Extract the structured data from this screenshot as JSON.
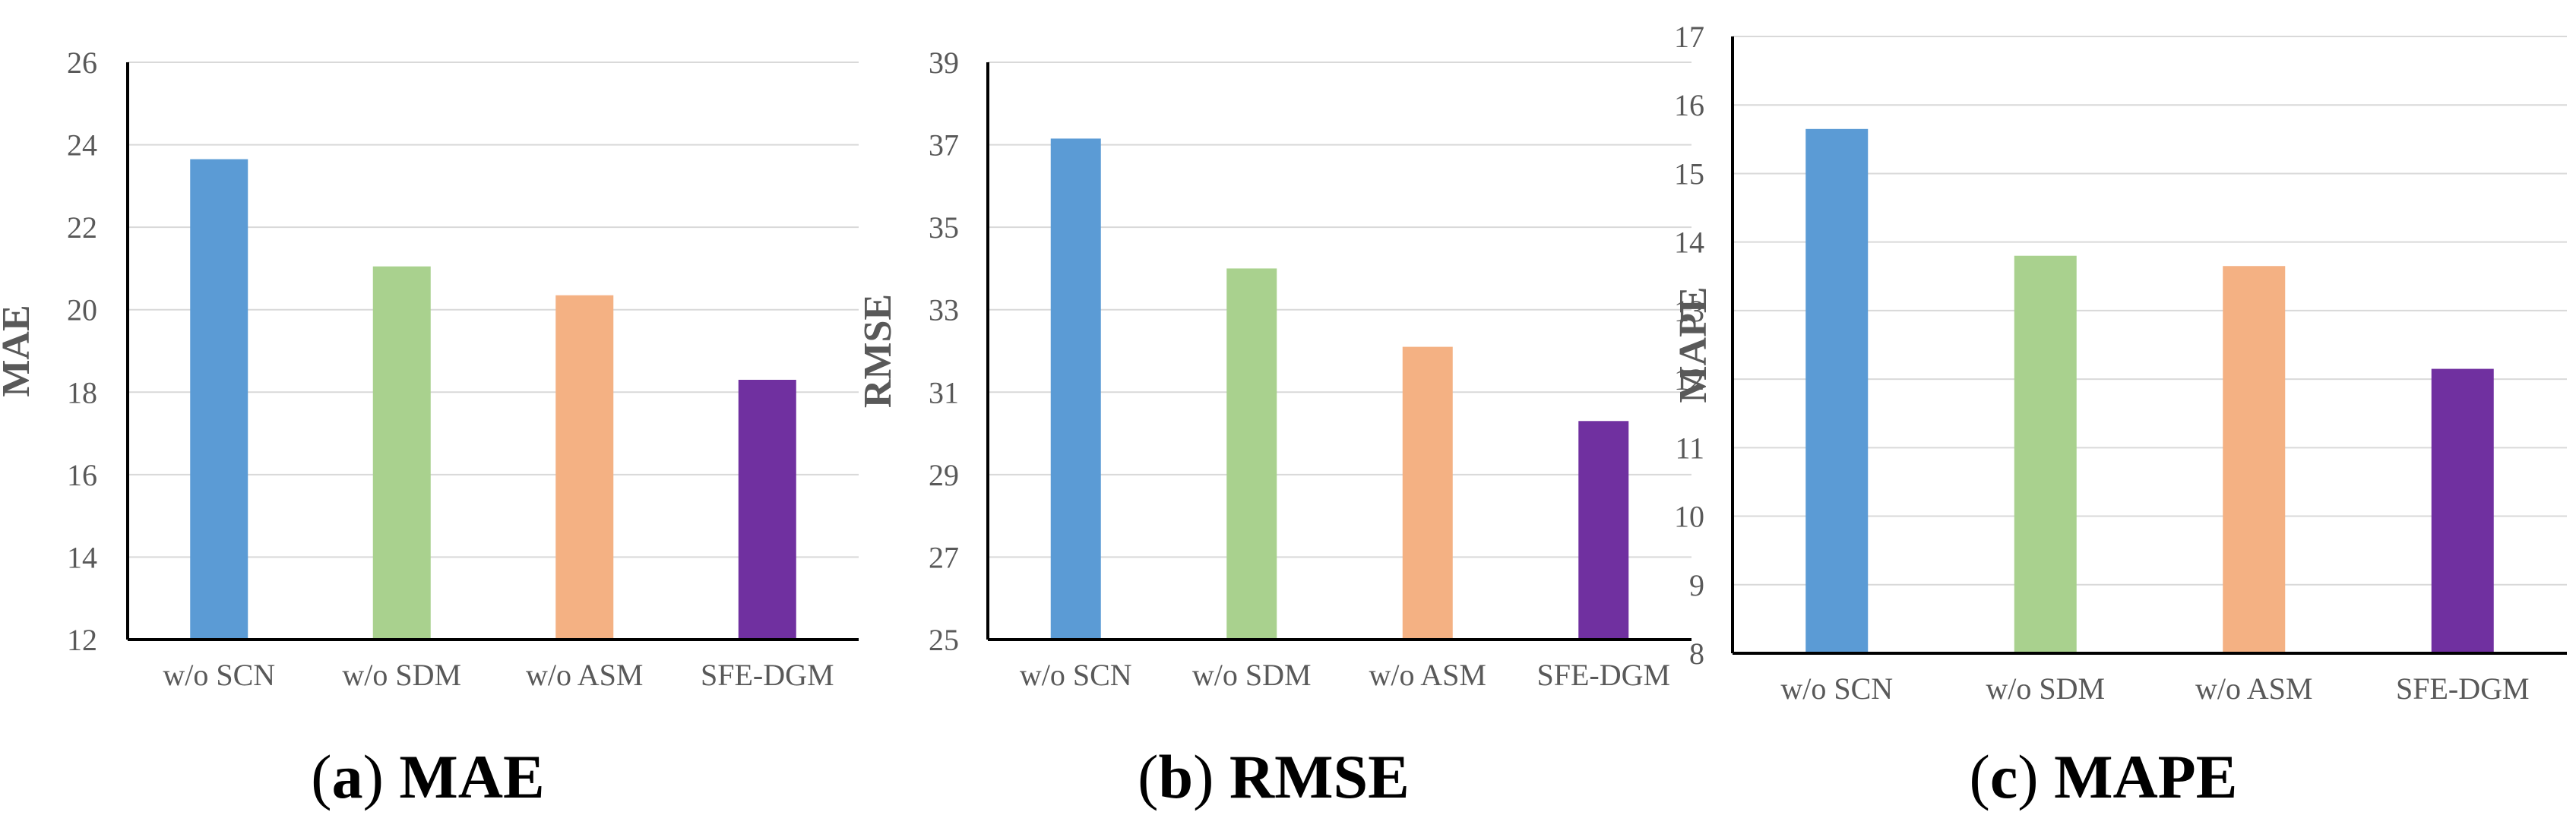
{
  "chart_data": [
    {
      "type": "bar",
      "panel_letter": "a",
      "title": "MAE",
      "ylabel": "MAE",
      "xlabel": "",
      "categories": [
        "w/o SCN",
        "w/o SDM",
        "w/o ASM",
        "SFE-DGM"
      ],
      "values": [
        23.65,
        21.05,
        20.35,
        18.3
      ],
      "ylim": [
        12,
        26
      ],
      "yticks": [
        12,
        14,
        16,
        18,
        20,
        22,
        24,
        26
      ],
      "grid": true
    },
    {
      "type": "bar",
      "panel_letter": "b",
      "title": "RMSE",
      "ylabel": "RMSE",
      "xlabel": "",
      "categories": [
        "w/o SCN",
        "w/o SDM",
        "w/o ASM",
        "SFE-DGM"
      ],
      "values": [
        37.15,
        34.0,
        32.1,
        30.3
      ],
      "ylim": [
        25,
        39
      ],
      "yticks": [
        25,
        27,
        29,
        31,
        33,
        35,
        37,
        39
      ],
      "grid": true
    },
    {
      "type": "bar",
      "panel_letter": "c",
      "title": "MAPE",
      "ylabel": "MAPE",
      "xlabel": "",
      "categories": [
        "w/o SCN",
        "w/o SDM",
        "w/o ASM",
        "SFE-DGM"
      ],
      "values": [
        15.65,
        13.8,
        13.65,
        12.15
      ],
      "ylim": [
        8,
        17
      ],
      "yticks": [
        8,
        9,
        10,
        11,
        12,
        13,
        14,
        15,
        16,
        17
      ],
      "grid": true
    }
  ],
  "colors": {
    "bars": [
      "#5b9bd5",
      "#a9d18e",
      "#f4b183",
      "#7030a0"
    ],
    "grid": "#d9d9d9",
    "axis": "#000000",
    "tick_text": "#595959"
  }
}
